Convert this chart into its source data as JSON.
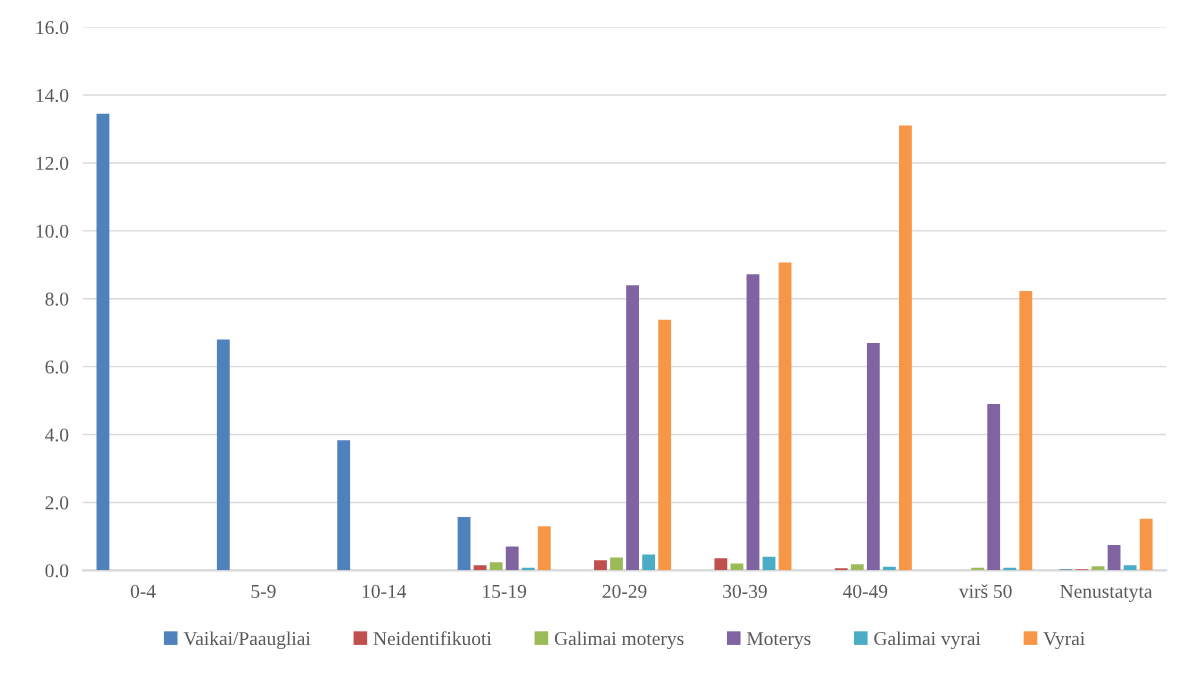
{
  "chart_data": {
    "type": "bar",
    "categories": [
      "0-4",
      "5-9",
      "10-14",
      "15-19",
      "20-29",
      "30-39",
      "40-49",
      "virš 50",
      "Nenustatyta"
    ],
    "series": [
      {
        "name": "Vaikai/Paaugliai",
        "color": "#4f81bd",
        "values": [
          13.45,
          6.8,
          3.83,
          1.57,
          null,
          null,
          null,
          null,
          0.03
        ]
      },
      {
        "name": "Neidentifikuoti",
        "color": "#c0504d",
        "values": [
          null,
          null,
          null,
          0.15,
          0.3,
          0.36,
          0.06,
          null,
          0.03
        ]
      },
      {
        "name": "Galimai moterys",
        "color": "#9bbb59",
        "values": [
          null,
          null,
          null,
          0.24,
          0.38,
          0.2,
          0.18,
          0.08,
          0.12
        ]
      },
      {
        "name": "Moterys",
        "color": "#8064a2",
        "values": [
          null,
          null,
          null,
          0.7,
          8.4,
          8.72,
          6.7,
          4.9,
          0.75
        ]
      },
      {
        "name": "Galimai vyrai",
        "color": "#4bacc6",
        "values": [
          null,
          null,
          null,
          0.08,
          0.47,
          0.4,
          0.11,
          0.08,
          0.15
        ]
      },
      {
        "name": "Vyrai",
        "color": "#f79646",
        "values": [
          null,
          null,
          null,
          1.3,
          7.38,
          9.07,
          13.1,
          8.23,
          1.52
        ]
      }
    ],
    "ylim": [
      0,
      16
    ],
    "yticks": [
      {
        "value": 0,
        "label": "0.0"
      },
      {
        "value": 2,
        "label": "2.0"
      },
      {
        "value": 4,
        "label": "4.0"
      },
      {
        "value": 6,
        "label": "6.0"
      },
      {
        "value": 8,
        "label": "8.0"
      },
      {
        "value": 10,
        "label": "10.0"
      },
      {
        "value": 12,
        "label": "12.0"
      },
      {
        "value": 14,
        "label": "14.0"
      },
      {
        "value": 16,
        "label": "16.0"
      }
    ],
    "grid": "y",
    "legend": "bottom"
  }
}
